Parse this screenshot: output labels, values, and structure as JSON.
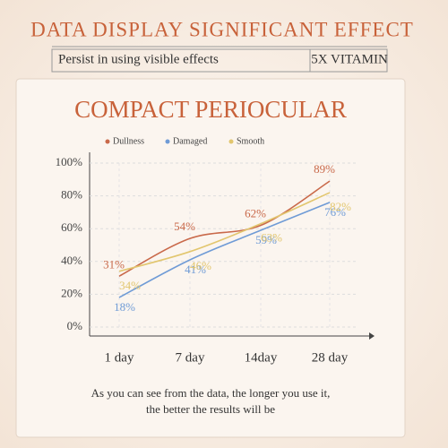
{
  "header": {
    "title": "DATA DISPLAY SIGNIFICANT EFFECT",
    "subtitle": "Persist in using visible effects",
    "badge": "5X VITAMIN"
  },
  "chart_data": {
    "type": "line",
    "title": "COMPACT PERIOCULAR",
    "categories": [
      "1 day",
      "7 day",
      "14day",
      "28 day"
    ],
    "series": [
      {
        "name": "Dullness",
        "color": "#c9694a",
        "values": [
          31,
          54,
          62,
          89
        ],
        "value_labels": [
          "31%",
          "54%",
          "62%",
          "89%"
        ]
      },
      {
        "name": "Damaged",
        "color": "#6f9bd6",
        "values": [
          18,
          41,
          59,
          76
        ],
        "value_labels": [
          "18%",
          "41%",
          "59%",
          "76%"
        ]
      },
      {
        "name": "Smooth",
        "color": "#e2c66e",
        "values": [
          34,
          46,
          63,
          82
        ],
        "value_labels": [
          "34%",
          "46%",
          "63%",
          "82%"
        ]
      }
    ],
    "ylim": [
      0,
      100
    ],
    "yticks": [
      {
        "value": 0,
        "label": "0%"
      },
      {
        "value": 20,
        "label": "20%"
      },
      {
        "value": 40,
        "label": "40%"
      },
      {
        "value": 60,
        "label": "60%"
      },
      {
        "value": 80,
        "label": "80%"
      },
      {
        "value": 100,
        "label": "100%"
      }
    ],
    "grid": true,
    "annotations": [
      "As you can see from the data, the longer you use it,",
      "the better the results will be"
    ]
  }
}
